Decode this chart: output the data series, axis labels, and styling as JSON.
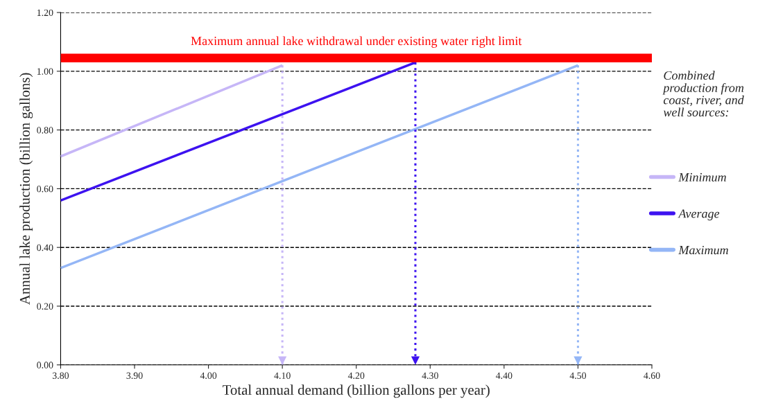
{
  "chart_data": {
    "type": "line",
    "xlabel": "Total annual demand (billion gallons per year)",
    "ylabel": "Annual lake production (billion gallons)",
    "legend_title": "Combined production from coast, river, and well sources:",
    "xlim": [
      3.8,
      4.6
    ],
    "xticks": [
      {
        "value": 3.8,
        "label": "3.80"
      },
      {
        "value": 3.9,
        "label": "3.90"
      },
      {
        "value": 4.0,
        "label": "4.00"
      },
      {
        "value": 4.1,
        "label": "4.10"
      },
      {
        "value": 4.2,
        "label": "4.20"
      },
      {
        "value": 4.3,
        "label": "4.30"
      },
      {
        "value": 4.4,
        "label": "4.40"
      },
      {
        "value": 4.5,
        "label": "4.50"
      },
      {
        "value": 4.6,
        "label": "4.60"
      }
    ],
    "ylim": [
      0,
      1.2
    ],
    "yticks": [
      {
        "value": 0,
        "label": "0.00"
      },
      {
        "value": 0.2,
        "label": "0.20"
      },
      {
        "value": 0.4,
        "label": "0.40"
      },
      {
        "value": 0.6,
        "label": "0.60"
      },
      {
        "value": 0.8,
        "label": "0.80"
      },
      {
        "value": 1.0,
        "label": "1.00"
      },
      {
        "value": 1.2,
        "label": "1.20"
      }
    ],
    "series": [
      {
        "name": "Minimum",
        "color": "#c6b6f7",
        "x": [
          3.8,
          4.1
        ],
        "values": [
          0.71,
          1.02
        ]
      },
      {
        "name": "Average",
        "color": "#3d12f0",
        "x": [
          3.8,
          4.28
        ],
        "values": [
          0.56,
          1.03
        ]
      },
      {
        "name": "Maximum",
        "color": "#94b6f6",
        "x": [
          3.8,
          4.5
        ],
        "values": [
          0.33,
          1.02
        ]
      },
      {
        "color": "#c6b6f7",
        "x": [
          4.1,
          4.1
        ],
        "values": [
          1.02,
          0
        ],
        "line_style": "dotted"
      },
      {
        "color": "#3d12f0",
        "x": [
          4.28,
          4.28
        ],
        "values": [
          1.03,
          0
        ],
        "line_style": "dotted"
      },
      {
        "color": "#94b6f6",
        "x": [
          4.5,
          4.5
        ],
        "values": [
          1.02,
          0
        ],
        "line_style": "dotted"
      }
    ],
    "bands": [
      {
        "axis": "y",
        "from": 1.03,
        "to": 1.06,
        "label": "Maximum annual lake withdrawal under existing water right limit",
        "color": "#ff0000"
      }
    ],
    "grid": "y",
    "legend": "right"
  }
}
